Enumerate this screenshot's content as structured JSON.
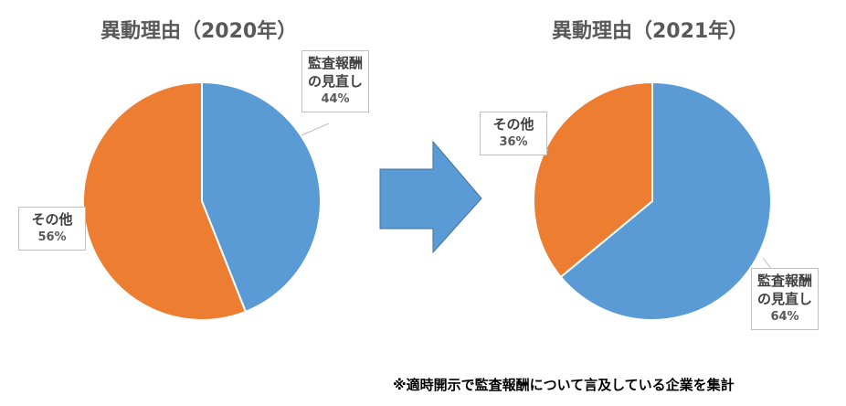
{
  "chart_data": [
    {
      "type": "pie",
      "title": "異動理由（2020年）",
      "categories": [
        "監査報酬の見直し",
        "その他"
      ],
      "values": [
        44,
        56
      ],
      "value_labels": [
        "44%",
        "56%"
      ],
      "colors": [
        "#5b9bd5",
        "#ed7d31"
      ]
    },
    {
      "type": "pie",
      "title": "異動理由（2021年）",
      "categories": [
        "監査報酬の見直し",
        "その他"
      ],
      "values": [
        64,
        36
      ],
      "value_labels": [
        "64%",
        "36%"
      ],
      "colors": [
        "#5b9bd5",
        "#ed7d31"
      ]
    }
  ],
  "note": "※適時開示で監査報酬について言及している企業を集計"
}
